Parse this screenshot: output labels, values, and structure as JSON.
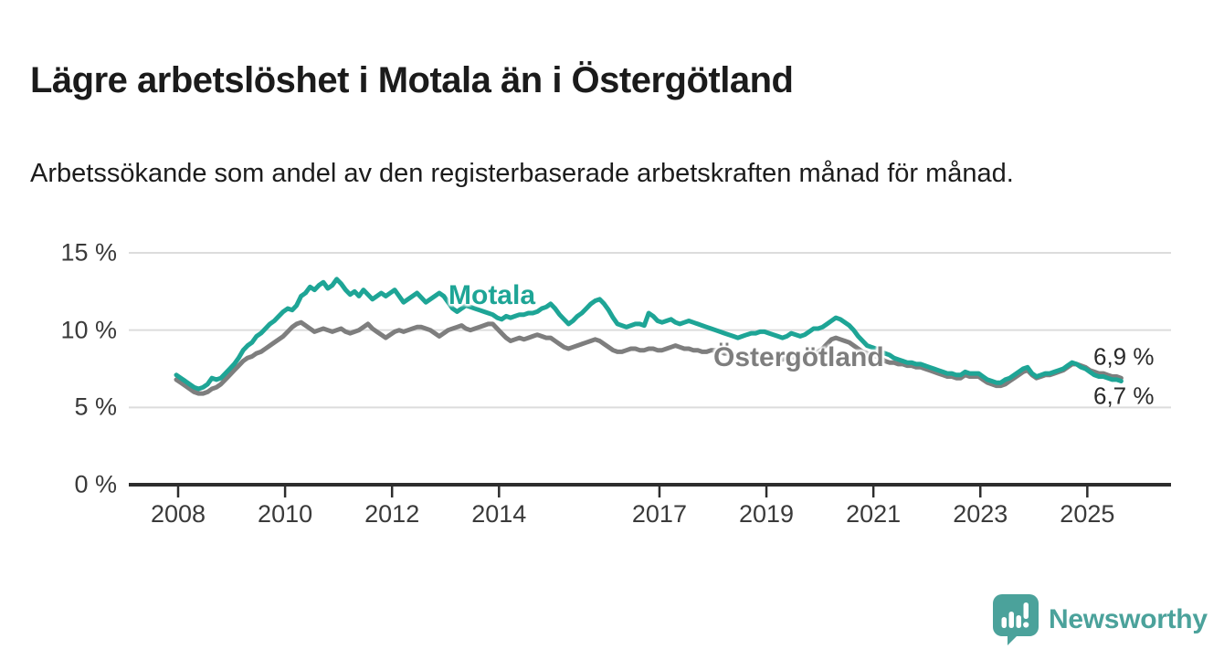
{
  "header": {
    "title": "Lägre arbetslöshet i Motala än i Östergötland",
    "subtitle": "Arbetssökande som andel av den registerbaserade arbetskraften månad för månad."
  },
  "chart_data": {
    "type": "line",
    "unit": "%",
    "frequency": "monthly",
    "x_start": "2008-01",
    "x_end": "2025-09",
    "ylim": [
      0,
      15
    ],
    "grid": "horizontal",
    "legend_position": "inline-labels",
    "yticks": [
      {
        "value": 0,
        "label": "0 %"
      },
      {
        "value": 5,
        "label": "5 %"
      },
      {
        "value": 10,
        "label": "10 %"
      },
      {
        "value": 15,
        "label": "15 %"
      }
    ],
    "xticks": [
      {
        "value": 2008,
        "label": "2008"
      },
      {
        "value": 2010,
        "label": "2010"
      },
      {
        "value": 2012,
        "label": "2012"
      },
      {
        "value": 2014,
        "label": "2014"
      },
      {
        "value": 2017,
        "label": "2017"
      },
      {
        "value": 2019,
        "label": "2019"
      },
      {
        "value": 2021,
        "label": "2021"
      },
      {
        "value": 2023,
        "label": "2023"
      },
      {
        "value": 2025,
        "label": "2025"
      }
    ],
    "series": [
      {
        "name": "Motala",
        "color": "#1ea596",
        "end_label": "6,7 %",
        "last_value": 6.7,
        "values": [
          7.1,
          6.9,
          6.7,
          6.5,
          6.3,
          6.2,
          6.3,
          6.5,
          6.9,
          6.8,
          6.9,
          7.2,
          7.5,
          7.8,
          8.2,
          8.7,
          9.0,
          9.2,
          9.6,
          9.8,
          10.1,
          10.4,
          10.6,
          10.9,
          11.2,
          11.4,
          11.3,
          11.6,
          12.2,
          12.4,
          12.8,
          12.6,
          12.9,
          13.1,
          12.7,
          12.9,
          13.3,
          13.0,
          12.6,
          12.3,
          12.5,
          12.2,
          12.6,
          12.3,
          12.0,
          12.2,
          12.4,
          12.2,
          12.4,
          12.6,
          12.2,
          11.8,
          12.0,
          12.2,
          12.4,
          12.1,
          11.8,
          12.0,
          12.2,
          12.4,
          12.2,
          11.8,
          11.4,
          11.2,
          11.4,
          11.6,
          11.5,
          11.4,
          11.3,
          11.2,
          11.1,
          11.0,
          10.8,
          10.7,
          10.9,
          10.8,
          10.9,
          11.0,
          11.0,
          11.1,
          11.1,
          11.2,
          11.4,
          11.5,
          11.7,
          11.4,
          11.0,
          10.7,
          10.4,
          10.6,
          10.9,
          11.1,
          11.4,
          11.7,
          11.9,
          12.0,
          11.7,
          11.3,
          10.8,
          10.4,
          10.3,
          10.2,
          10.3,
          10.4,
          10.4,
          10.3,
          11.1,
          10.9,
          10.6,
          10.5,
          10.6,
          10.7,
          10.5,
          10.4,
          10.5,
          10.6,
          10.5,
          10.4,
          10.3,
          10.2,
          10.1,
          10.0,
          9.9,
          9.8,
          9.7,
          9.6,
          9.5,
          9.6,
          9.7,
          9.8,
          9.8,
          9.9,
          9.9,
          9.8,
          9.7,
          9.6,
          9.5,
          9.6,
          9.8,
          9.7,
          9.6,
          9.7,
          9.9,
          10.1,
          10.1,
          10.2,
          10.4,
          10.6,
          10.8,
          10.7,
          10.5,
          10.3,
          10.0,
          9.6,
          9.3,
          9.0,
          8.9,
          8.8,
          8.6,
          8.5,
          8.4,
          8.2,
          8.1,
          8.0,
          7.9,
          7.9,
          7.8,
          7.8,
          7.7,
          7.6,
          7.5,
          7.4,
          7.3,
          7.2,
          7.2,
          7.1,
          7.1,
          7.3,
          7.2,
          7.2,
          7.2,
          7.0,
          6.8,
          6.7,
          6.6,
          6.6,
          6.8,
          6.9,
          7.1,
          7.3,
          7.5,
          7.6,
          7.2,
          7.0,
          7.1,
          7.2,
          7.2,
          7.3,
          7.4,
          7.5,
          7.7,
          7.9,
          7.8,
          7.6,
          7.5,
          7.3,
          7.1,
          7.0,
          7.0,
          6.9,
          6.8,
          6.8,
          6.7
        ]
      },
      {
        "name": "Östergötland",
        "color": "#7e7e7e",
        "end_label": "6,9 %",
        "last_value": 6.9,
        "values": [
          6.8,
          6.6,
          6.4,
          6.2,
          6.0,
          5.9,
          5.9,
          6.0,
          6.2,
          6.3,
          6.5,
          6.8,
          7.1,
          7.4,
          7.7,
          8.0,
          8.2,
          8.3,
          8.5,
          8.6,
          8.8,
          9.0,
          9.2,
          9.4,
          9.6,
          9.9,
          10.2,
          10.4,
          10.5,
          10.3,
          10.1,
          9.9,
          10.0,
          10.1,
          10.0,
          9.9,
          10.0,
          10.1,
          9.9,
          9.8,
          9.9,
          10.0,
          10.2,
          10.4,
          10.1,
          9.9,
          9.7,
          9.5,
          9.7,
          9.9,
          10.0,
          9.9,
          10.0,
          10.1,
          10.2,
          10.2,
          10.1,
          10.0,
          9.8,
          9.6,
          9.8,
          10.0,
          10.1,
          10.2,
          10.3,
          10.1,
          10.0,
          10.1,
          10.2,
          10.3,
          10.4,
          10.4,
          10.1,
          9.8,
          9.5,
          9.3,
          9.4,
          9.5,
          9.4,
          9.5,
          9.6,
          9.7,
          9.6,
          9.5,
          9.5,
          9.3,
          9.1,
          8.9,
          8.8,
          8.9,
          9.0,
          9.1,
          9.2,
          9.3,
          9.4,
          9.3,
          9.1,
          8.9,
          8.7,
          8.6,
          8.6,
          8.7,
          8.8,
          8.8,
          8.7,
          8.7,
          8.8,
          8.8,
          8.7,
          8.7,
          8.8,
          8.9,
          9.0,
          8.9,
          8.8,
          8.8,
          8.7,
          8.7,
          8.6,
          8.6,
          8.7,
          8.7,
          8.6,
          8.5,
          8.5,
          8.4,
          8.4,
          8.4,
          8.3,
          8.3,
          8.3,
          8.4,
          8.4,
          8.3,
          8.2,
          8.1,
          8.1,
          8.2,
          8.3,
          8.2,
          8.2,
          8.3,
          8.4,
          8.5,
          8.6,
          8.8,
          9.1,
          9.4,
          9.5,
          9.4,
          9.3,
          9.2,
          9.0,
          8.8,
          8.6,
          8.5,
          8.4,
          8.3,
          8.2,
          8.0,
          7.9,
          7.9,
          7.8,
          7.8,
          7.7,
          7.7,
          7.6,
          7.6,
          7.5,
          7.4,
          7.3,
          7.2,
          7.1,
          7.0,
          7.0,
          6.9,
          6.9,
          7.1,
          7.0,
          7.0,
          7.0,
          6.8,
          6.6,
          6.5,
          6.4,
          6.4,
          6.5,
          6.7,
          6.9,
          7.1,
          7.3,
          7.4,
          7.1,
          6.9,
          7.0,
          7.1,
          7.1,
          7.2,
          7.3,
          7.4,
          7.6,
          7.8,
          7.8,
          7.7,
          7.6,
          7.4,
          7.3,
          7.2,
          7.2,
          7.1,
          7.0,
          7.0,
          6.9
        ]
      }
    ],
    "colors": {
      "motala": "#1ea596",
      "ostergotland": "#7e7e7e",
      "gridline": "#dcdcdc",
      "axis": "#2d2d2d",
      "tick_text": "#3a3a3a"
    }
  },
  "footer": {
    "brand": "Newsworthy",
    "brand_color": "#4ba29b"
  }
}
